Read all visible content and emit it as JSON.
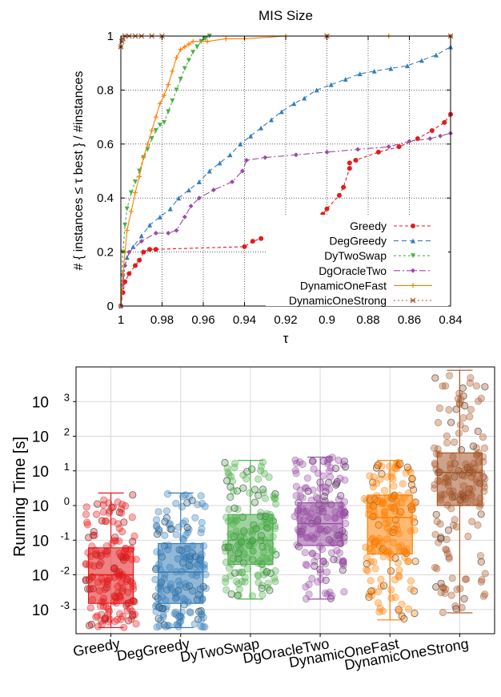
{
  "chart_data": [
    {
      "type": "line",
      "title": "MIS Size",
      "xlabel": "τ",
      "ylabel": "# { instances ≤ τ best } / #instances",
      "xlim": [
        1.0,
        0.84
      ],
      "ylim": [
        0,
        1
      ],
      "x_reversed": true,
      "grid": true,
      "legend_position": "bottom-right",
      "x_ticks": [
        "1",
        "0.98",
        "0.96",
        "0.94",
        "0.92",
        "0.9",
        "0.88",
        "0.86",
        "0.84"
      ],
      "y_ticks": [
        "0",
        "0.2",
        "0.4",
        "0.6",
        "0.8",
        "1"
      ],
      "series": [
        {
          "name": "Greedy",
          "color": "#e41a1c",
          "marker": "circle",
          "dash": "4,3",
          "x": [
            1.0,
            0.999,
            0.998,
            0.996,
            0.993,
            0.991,
            0.989,
            0.986,
            0.983,
            0.94,
            0.936,
            0.932,
            0.927,
            0.921,
            0.916,
            0.913,
            0.906,
            0.902,
            0.902,
            0.9,
            0.894,
            0.892,
            0.889,
            0.889,
            0.886,
            0.875,
            0.865,
            0.856,
            0.849,
            0.843,
            0.84
          ],
          "y": [
            0.0,
            0.05,
            0.09,
            0.12,
            0.15,
            0.17,
            0.2,
            0.21,
            0.21,
            0.22,
            0.24,
            0.25,
            0.26,
            0.27,
            0.28,
            0.29,
            0.31,
            0.32,
            0.34,
            0.36,
            0.41,
            0.44,
            0.51,
            0.53,
            0.54,
            0.57,
            0.59,
            0.62,
            0.65,
            0.68,
            0.71
          ]
        },
        {
          "name": "DegGreedy",
          "color": "#377eb8",
          "marker": "triangle",
          "dash": "6,4",
          "x": [
            1.0,
            0.999,
            0.997,
            0.994,
            0.99,
            0.986,
            0.981,
            0.976,
            0.972,
            0.967,
            0.962,
            0.957,
            0.952,
            0.947,
            0.942,
            0.937,
            0.932,
            0.927,
            0.922,
            0.916,
            0.911,
            0.905,
            0.898,
            0.891,
            0.884,
            0.877,
            0.869,
            0.861,
            0.854,
            0.847,
            0.84
          ],
          "y": [
            0.0,
            0.12,
            0.18,
            0.22,
            0.26,
            0.3,
            0.33,
            0.36,
            0.4,
            0.43,
            0.46,
            0.5,
            0.53,
            0.56,
            0.6,
            0.63,
            0.66,
            0.69,
            0.72,
            0.75,
            0.77,
            0.8,
            0.82,
            0.84,
            0.86,
            0.87,
            0.88,
            0.89,
            0.91,
            0.93,
            0.96
          ]
        },
        {
          "name": "DyTwoSwap",
          "color": "#4daf4a",
          "marker": "triangle-down",
          "dash": "3,3",
          "x": [
            1.0,
            0.999,
            0.998,
            0.997,
            0.995,
            0.993,
            0.991,
            0.989,
            0.987,
            0.985,
            0.983,
            0.981,
            0.979,
            0.977,
            0.975,
            0.973,
            0.971,
            0.969,
            0.967,
            0.965,
            0.963,
            0.961,
            0.959,
            0.957
          ],
          "y": [
            0.0,
            0.2,
            0.3,
            0.36,
            0.42,
            0.46,
            0.5,
            0.55,
            0.58,
            0.62,
            0.65,
            0.67,
            0.68,
            0.72,
            0.76,
            0.8,
            0.84,
            0.88,
            0.91,
            0.94,
            0.96,
            0.98,
            0.99,
            1.0
          ]
        },
        {
          "name": "DgOracleTwo",
          "color": "#984ea3",
          "marker": "diamond",
          "dash": "8,3,2,3",
          "x": [
            1.0,
            0.999,
            0.998,
            0.996,
            0.99,
            0.983,
            0.977,
            0.973,
            0.969,
            0.966,
            0.962,
            0.955,
            0.946,
            0.941,
            0.939,
            0.93,
            0.915,
            0.9,
            0.885,
            0.87,
            0.86,
            0.85,
            0.845,
            0.84
          ],
          "y": [
            0.0,
            0.08,
            0.15,
            0.2,
            0.24,
            0.27,
            0.27,
            0.28,
            0.33,
            0.37,
            0.4,
            0.43,
            0.46,
            0.5,
            0.54,
            0.55,
            0.56,
            0.57,
            0.58,
            0.59,
            0.61,
            0.62,
            0.63,
            0.64
          ]
        },
        {
          "name": "DynamicOneFast",
          "color": "#ff7f00",
          "marker": "plus",
          "dash": "",
          "x": [
            1.0,
            0.999,
            0.998,
            0.997,
            0.995,
            0.993,
            0.991,
            0.989,
            0.987,
            0.985,
            0.983,
            0.981,
            0.979,
            0.977,
            0.975,
            0.973,
            0.971,
            0.969,
            0.967,
            0.965,
            0.958,
            0.949,
            0.94,
            0.92,
            0.9,
            0.87,
            0.84
          ],
          "y": [
            0.0,
            0.12,
            0.2,
            0.28,
            0.35,
            0.42,
            0.48,
            0.55,
            0.6,
            0.65,
            0.7,
            0.75,
            0.78,
            0.82,
            0.87,
            0.92,
            0.95,
            0.96,
            0.97,
            0.98,
            0.98,
            0.99,
            0.99,
            1.0,
            1.0,
            1.0,
            1.0
          ]
        },
        {
          "name": "DynamicOneStrong",
          "color": "#a65628",
          "marker": "star",
          "dash": "2,3",
          "x": [
            1.0,
            0.9995,
            0.999,
            0.998,
            0.996,
            0.993,
            0.99,
            0.985,
            0.98,
            0.9,
            0.84
          ],
          "y": [
            0.96,
            0.98,
            0.99,
            1.0,
            1.0,
            1.0,
            1.0,
            1.0,
            1.0,
            1.0,
            1.0
          ]
        }
      ]
    },
    {
      "type": "box",
      "ylabel": "Running Time [s]",
      "yscale": "log",
      "ylim": [
        0.0002,
        10000
      ],
      "grid": true,
      "y_ticks": [
        {
          "value": 1000,
          "base": "10",
          "exp": "3"
        },
        {
          "value": 100,
          "base": "10",
          "exp": "2"
        },
        {
          "value": 10,
          "base": "10",
          "exp": "1"
        },
        {
          "value": 1,
          "base": "10",
          "exp": "0"
        },
        {
          "value": 0.1,
          "base": "10",
          "exp": "-1"
        },
        {
          "value": 0.01,
          "base": "10",
          "exp": "-2"
        },
        {
          "value": 0.001,
          "base": "10",
          "exp": "-3"
        }
      ],
      "categories": [
        "Greedy",
        "DegGreedy",
        "DyTwoSwap",
        "DgOracleTwo",
        "DynamicOneFast",
        "DynamicOneStrong"
      ],
      "series": [
        {
          "name": "Greedy",
          "color": "#e41a1c",
          "q1": 0.0015,
          "median": 0.01,
          "q3": 0.06,
          "whisker_low": 0.0003,
          "whisker_high": 2.3
        },
        {
          "name": "DegGreedy",
          "color": "#377eb8",
          "q1": 0.0015,
          "median": 0.012,
          "q3": 0.08,
          "whisker_low": 0.0003,
          "whisker_high": 2.3
        },
        {
          "name": "DyTwoSwap",
          "color": "#4daf4a",
          "q1": 0.02,
          "median": 0.1,
          "q3": 0.55,
          "whisker_low": 0.002,
          "whisker_high": 20
        },
        {
          "name": "DgOracleTwo",
          "color": "#984ea3",
          "q1": 0.07,
          "median": 0.3,
          "q3": 1.2,
          "whisker_low": 0.002,
          "whisker_high": 25
        },
        {
          "name": "DynamicOneFast",
          "color": "#ff7f00",
          "q1": 0.04,
          "median": 0.45,
          "q3": 2.0,
          "whisker_low": 0.0005,
          "whisker_high": 20
        },
        {
          "name": "DynamicOneStrong",
          "color": "#a65628",
          "q1": 1.0,
          "median": 9.0,
          "q3": 33,
          "whisker_low": 0.0008,
          "whisker_high": 8000
        }
      ]
    }
  ]
}
